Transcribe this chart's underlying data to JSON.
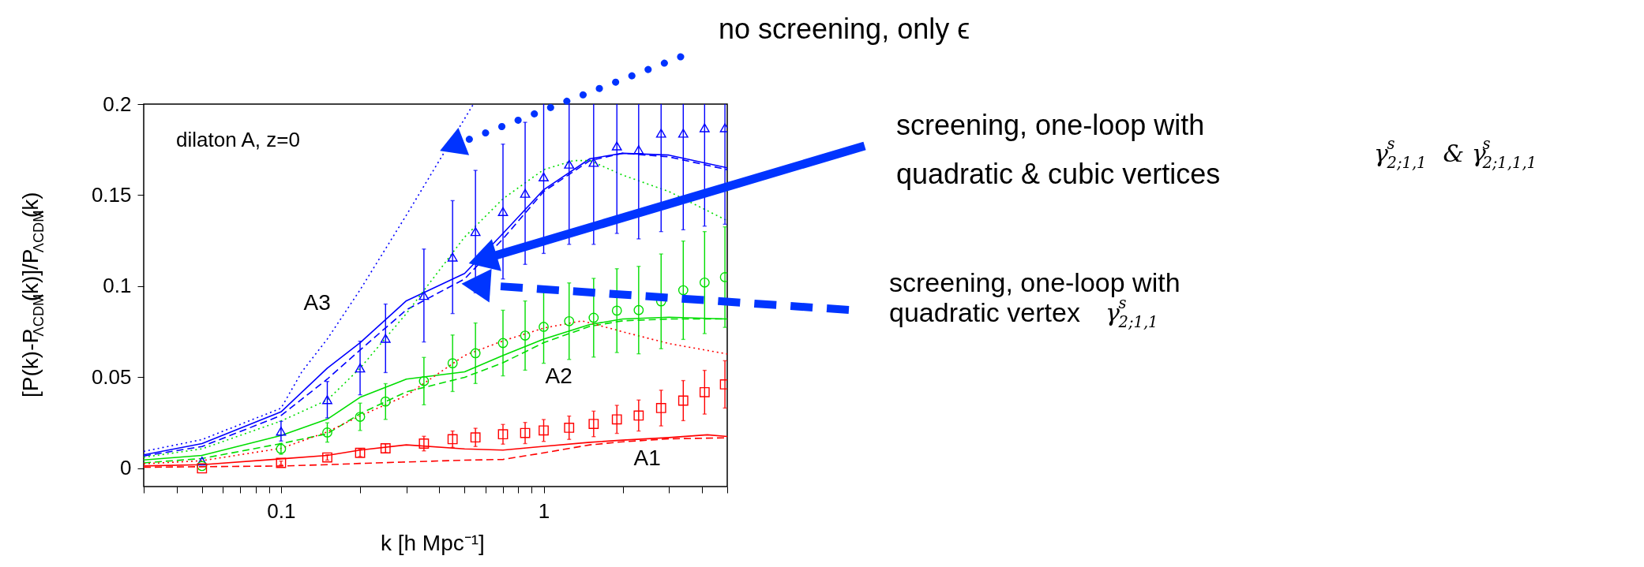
{
  "chart_data": {
    "type": "line",
    "xlabel": "k [h Mpc⁻¹]",
    "ylabel": "[P(k)-P$_{ΛCDM}$(k)]/P$_{ΛCDM}$(k)",
    "log": "x",
    "grid": false,
    "xlim": [
      0.03,
      5
    ],
    "ylim": [
      -0.01,
      0.2
    ],
    "xticks": [
      {
        "value": 0.03,
        "label": null
      },
      {
        "value": 0.04,
        "label": null
      },
      {
        "value": 0.05,
        "label": null
      },
      {
        "value": 0.06,
        "label": null
      },
      {
        "value": 0.07,
        "label": null
      },
      {
        "value": 0.08,
        "label": null
      },
      {
        "value": 0.09,
        "label": null
      },
      0.1,
      {
        "value": 0.2,
        "label": null
      },
      {
        "value": 0.3,
        "label": null
      },
      {
        "value": 0.4,
        "label": null
      },
      {
        "value": 0.5,
        "label": null
      },
      {
        "value": 0.6,
        "label": null
      },
      {
        "value": 0.7,
        "label": null
      },
      {
        "value": 0.8,
        "label": null
      },
      {
        "value": 0.9,
        "label": null
      },
      1,
      {
        "value": 2,
        "label": null
      },
      {
        "value": 3,
        "label": null
      },
      {
        "value": 4,
        "label": null
      },
      {
        "value": 5,
        "label": null
      }
    ],
    "yticks": [
      0,
      0.05,
      0.1,
      0.15,
      0.2
    ],
    "series": [
      {
        "color": "#0000ff",
        "line_style": "solid",
        "x": [
          0.03,
          0.05,
          0.1,
          0.15,
          0.2,
          0.3,
          0.5,
          0.7,
          1,
          1.5,
          2,
          3,
          5
        ],
        "values": [
          0.0074,
          0.0136,
          0.031,
          0.055,
          0.069,
          0.092,
          0.107,
          0.129,
          0.153,
          0.17,
          0.173,
          0.172,
          0.165
        ]
      },
      {
        "color": "#0000ff",
        "line_style": "dashed",
        "x": [
          0.03,
          0.05,
          0.1,
          0.15,
          0.2,
          0.3,
          0.5,
          0.7,
          1,
          1.5,
          2,
          3,
          5
        ],
        "values": [
          0.0068,
          0.012,
          0.029,
          0.049,
          0.065,
          0.087,
          0.104,
          0.126,
          0.152,
          0.169,
          0.173,
          0.171,
          0.164
        ]
      },
      {
        "color": "#0000ff",
        "line_style": "dotted",
        "x": [
          0.03,
          0.05,
          0.1,
          0.12,
          0.15,
          0.2,
          0.3,
          0.5,
          0.54
        ],
        "values": [
          0.0093,
          0.0158,
          0.033,
          0.053,
          0.071,
          0.098,
          0.139,
          0.192,
          0.2
        ]
      },
      {
        "color": "#00dd00",
        "line_style": "solid",
        "x": [
          0.03,
          0.05,
          0.1,
          0.15,
          0.2,
          0.3,
          0.5,
          0.7,
          1,
          1.5,
          2,
          3,
          5
        ],
        "values": [
          0.0046,
          0.0071,
          0.018,
          0.027,
          0.039,
          0.049,
          0.053,
          0.062,
          0.071,
          0.079,
          0.082,
          0.083,
          0.082
        ]
      },
      {
        "color": "#00dd00",
        "line_style": "dashed",
        "x": [
          0.03,
          0.05,
          0.1,
          0.15,
          0.2,
          0.3,
          0.5,
          0.7,
          1,
          1.5,
          2,
          3,
          5
        ],
        "values": [
          0.003,
          0.0054,
          0.0136,
          0.019,
          0.03,
          0.042,
          0.05,
          0.058,
          0.069,
          0.078,
          0.081,
          0.082,
          0.082
        ]
      },
      {
        "color": "#00dd00",
        "line_style": "dotted",
        "x": [
          0.03,
          0.05,
          0.1,
          0.15,
          0.2,
          0.3,
          0.5,
          0.7,
          1,
          1.3,
          1.5,
          2,
          3,
          5
        ],
        "values": [
          0.0061,
          0.0107,
          0.026,
          0.0375,
          0.055,
          0.085,
          0.127,
          0.148,
          0.164,
          0.169,
          0.169,
          0.161,
          0.152,
          0.136
        ]
      },
      {
        "color": "#ff0000",
        "line_style": "solid",
        "x": [
          0.03,
          0.05,
          0.1,
          0.15,
          0.2,
          0.3,
          0.5,
          0.7,
          1,
          1.5,
          2,
          3,
          4.2,
          5
        ],
        "values": [
          0.0013,
          0.002,
          0.0052,
          0.0071,
          0.01,
          0.0129,
          0.0107,
          0.01,
          0.0121,
          0.0143,
          0.0155,
          0.0169,
          0.0184,
          0.0175
        ]
      },
      {
        "color": "#ff0000",
        "line_style": "dashed",
        "x": [
          0.03,
          0.05,
          0.1,
          0.15,
          0.2,
          0.3,
          0.5,
          0.7,
          1,
          1.5,
          2,
          3,
          5
        ],
        "values": [
          0.0006,
          0.0009,
          0.0013,
          0.002,
          0.0027,
          0.0035,
          0.0045,
          0.0049,
          0.0085,
          0.0129,
          0.0146,
          0.0162,
          0.0168
        ]
      },
      {
        "color": "#ff0000",
        "line_style": "dotted",
        "x": [
          0.03,
          0.05,
          0.1,
          0.15,
          0.2,
          0.3,
          0.5,
          0.7,
          1,
          1.4,
          2,
          3,
          5
        ],
        "values": [
          0.0025,
          0.0042,
          0.011,
          0.02,
          0.0288,
          0.04,
          0.062,
          0.07,
          0.077,
          0.081,
          0.075,
          0.0685,
          0.0628
        ]
      },
      {
        "type": "scatter",
        "color": "#0000ff",
        "marker": "triangle",
        "x": [
          0.05,
          0.1,
          0.15,
          0.2,
          0.25,
          0.35,
          0.45,
          0.55,
          0.7,
          0.85,
          1.0,
          1.25,
          1.55,
          1.9,
          2.3,
          2.8,
          3.4,
          4.1,
          4.9
        ],
        "values": [
          0.004,
          0.0204,
          0.0377,
          0.0551,
          0.0714,
          0.0949,
          0.116,
          0.13,
          0.141,
          0.151,
          0.16,
          0.167,
          0.168,
          0.177,
          0.175,
          0.184,
          0.184,
          0.187,
          0.187
        ],
        "errors": [
          null,
          0.0054,
          0.01,
          0.0147,
          0.0188,
          0.0255,
          0.031,
          0.0336,
          0.037,
          0.039,
          0.042,
          0.044,
          0.045,
          0.048,
          0.049,
          0.054,
          0.053,
          0.054,
          0.053
        ]
      },
      {
        "type": "scatter",
        "color": "#00dd00",
        "marker": "circle",
        "x": [
          0.05,
          0.1,
          0.15,
          0.2,
          0.25,
          0.35,
          0.45,
          0.55,
          0.7,
          0.85,
          1.0,
          1.25,
          1.55,
          1.9,
          2.3,
          2.8,
          3.4,
          4.1,
          4.9
        ],
        "values": [
          0.0013,
          0.0107,
          0.0197,
          0.0283,
          0.0367,
          0.0479,
          0.0577,
          0.0632,
          0.0688,
          0.0729,
          0.0777,
          0.0808,
          0.0827,
          0.0866,
          0.0869,
          0.0917,
          0.0978,
          0.102,
          0.105
        ],
        "errors": [
          null,
          0.003,
          0.0053,
          0.0075,
          0.0098,
          0.013,
          0.0155,
          0.0166,
          0.018,
          0.019,
          0.02,
          0.021,
          0.0216,
          0.023,
          0.024,
          0.026,
          0.027,
          0.028,
          0.0276
        ]
      },
      {
        "type": "scatter",
        "color": "#ff0000",
        "marker": "square",
        "x": [
          0.05,
          0.1,
          0.15,
          0.2,
          0.25,
          0.35,
          0.45,
          0.55,
          0.7,
          0.85,
          1.0,
          1.25,
          1.55,
          1.9,
          2.3,
          2.8,
          3.4,
          4.1,
          4.9
        ],
        "values": [
          0.0,
          0.003,
          0.006,
          0.0085,
          0.011,
          0.0136,
          0.016,
          0.017,
          0.0187,
          0.0194,
          0.0208,
          0.0223,
          0.0244,
          0.0269,
          0.029,
          0.0331,
          0.0372,
          0.0418,
          0.0461
        ],
        "errors": [
          null,
          0.001,
          0.0015,
          0.002,
          0.0025,
          0.004,
          0.0045,
          0.005,
          0.0054,
          0.0058,
          0.006,
          0.0064,
          0.007,
          0.0077,
          0.0085,
          0.0098,
          0.011,
          0.012,
          0.013
        ]
      }
    ],
    "annotations": [
      "dilaton A, z=0",
      "A3",
      "A2",
      "A1",
      "no screening, only ϵ",
      "screening, one-loop with",
      "quadratic & cubic vertices",
      "γ$^{s}$$_{2;1,1}$  &  γ$^{s}$$_{2;1,1,1}$",
      "screening, one-loop with",
      "quadratic vertex",
      "γ$^{s}$$_{2;1,1}$"
    ]
  }
}
